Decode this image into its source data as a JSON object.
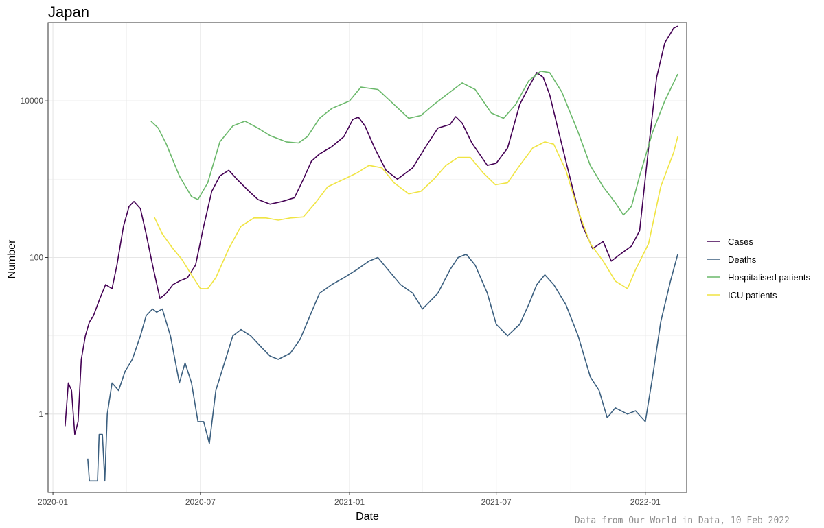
{
  "chart_data": {
    "type": "line",
    "title": "Japan",
    "xlabel": "Date",
    "ylabel": "Number",
    "caption": "Data from Our World in Data, 10 Feb 2022",
    "y_scale": "log10",
    "ylim": [
      0.1,
      100000
    ],
    "xlim": [
      "2019-12-26",
      "2022-02-21"
    ],
    "x_ticks": [
      {
        "date": "2020-01-01",
        "label": "2020-01"
      },
      {
        "date": "2020-07-01",
        "label": "2020-07"
      },
      {
        "date": "2021-01-01",
        "label": "2021-01"
      },
      {
        "date": "2021-07-01",
        "label": "2021-07"
      },
      {
        "date": "2022-01-01",
        "label": "2022-01"
      }
    ],
    "y_ticks": [
      {
        "value": 1,
        "label": "1"
      },
      {
        "value": 100,
        "label": "100"
      },
      {
        "value": 10000,
        "label": "10000"
      }
    ],
    "grid": true,
    "legend_position": "right",
    "series": [
      {
        "name": "Cases",
        "color": "#440154",
        "points": [
          [
            "2020-01-16",
            0.7
          ],
          [
            "2020-01-20",
            2.5
          ],
          [
            "2020-01-24",
            2.0
          ],
          [
            "2020-01-28",
            0.55
          ],
          [
            "2020-02-01",
            0.8
          ],
          [
            "2020-02-05",
            5
          ],
          [
            "2020-02-10",
            10
          ],
          [
            "2020-02-15",
            15
          ],
          [
            "2020-02-20",
            18
          ],
          [
            "2020-02-28",
            30
          ],
          [
            "2020-03-06",
            45
          ],
          [
            "2020-03-14",
            40
          ],
          [
            "2020-03-20",
            80
          ],
          [
            "2020-03-28",
            250
          ],
          [
            "2020-04-04",
            450
          ],
          [
            "2020-04-10",
            520
          ],
          [
            "2020-04-18",
            420
          ],
          [
            "2020-04-25",
            200
          ],
          [
            "2020-05-03",
            80
          ],
          [
            "2020-05-12",
            30
          ],
          [
            "2020-05-20",
            35
          ],
          [
            "2020-05-28",
            45
          ],
          [
            "2020-06-05",
            50
          ],
          [
            "2020-06-15",
            55
          ],
          [
            "2020-06-25",
            80
          ],
          [
            "2020-07-05",
            250
          ],
          [
            "2020-07-15",
            700
          ],
          [
            "2020-07-25",
            1100
          ],
          [
            "2020-08-05",
            1300
          ],
          [
            "2020-08-15",
            1000
          ],
          [
            "2020-08-30",
            700
          ],
          [
            "2020-09-10",
            550
          ],
          [
            "2020-09-25",
            480
          ],
          [
            "2020-10-10",
            520
          ],
          [
            "2020-10-25",
            580
          ],
          [
            "2020-11-05",
            1000
          ],
          [
            "2020-11-15",
            1700
          ],
          [
            "2020-11-25",
            2100
          ],
          [
            "2020-12-10",
            2600
          ],
          [
            "2020-12-25",
            3500
          ],
          [
            "2021-01-05",
            5800
          ],
          [
            "2021-01-12",
            6200
          ],
          [
            "2021-01-20",
            4800
          ],
          [
            "2021-02-01",
            2500
          ],
          [
            "2021-02-15",
            1300
          ],
          [
            "2021-03-01",
            1000
          ],
          [
            "2021-03-20",
            1400
          ],
          [
            "2021-04-05",
            2600
          ],
          [
            "2021-04-20",
            4500
          ],
          [
            "2021-05-05",
            5000
          ],
          [
            "2021-05-12",
            6300
          ],
          [
            "2021-05-20",
            5200
          ],
          [
            "2021-06-01",
            2900
          ],
          [
            "2021-06-20",
            1500
          ],
          [
            "2021-07-01",
            1600
          ],
          [
            "2021-07-15",
            2500
          ],
          [
            "2021-07-30",
            9000
          ],
          [
            "2021-08-10",
            15000
          ],
          [
            "2021-08-20",
            23000
          ],
          [
            "2021-08-28",
            20000
          ],
          [
            "2021-09-05",
            12000
          ],
          [
            "2021-09-15",
            4500
          ],
          [
            "2021-09-25",
            1700
          ],
          [
            "2021-10-05",
            650
          ],
          [
            "2021-10-15",
            260
          ],
          [
            "2021-10-28",
            130
          ],
          [
            "2021-11-10",
            160
          ],
          [
            "2021-11-20",
            90
          ],
          [
            "2021-12-01",
            110
          ],
          [
            "2021-12-15",
            140
          ],
          [
            "2021-12-25",
            220
          ],
          [
            "2022-01-05",
            2500
          ],
          [
            "2022-01-15",
            20000
          ],
          [
            "2022-01-25",
            55000
          ],
          [
            "2022-02-05",
            85000
          ],
          [
            "2022-02-10",
            90000
          ]
        ]
      },
      {
        "name": "Deaths",
        "color": "#3b5f7f",
        "points": [
          [
            "2020-02-13",
            0.27
          ],
          [
            "2020-02-15",
            0.14
          ],
          [
            "2020-02-25",
            0.14
          ],
          [
            "2020-02-27",
            0.55
          ],
          [
            "2020-03-02",
            0.55
          ],
          [
            "2020-03-05",
            0.14
          ],
          [
            "2020-03-08",
            1.0
          ],
          [
            "2020-03-14",
            2.5
          ],
          [
            "2020-03-22",
            2.0
          ],
          [
            "2020-03-30",
            3.5
          ],
          [
            "2020-04-08",
            5
          ],
          [
            "2020-04-18",
            10
          ],
          [
            "2020-04-25",
            18
          ],
          [
            "2020-05-03",
            22
          ],
          [
            "2020-05-08",
            20
          ],
          [
            "2020-05-15",
            22
          ],
          [
            "2020-05-25",
            10
          ],
          [
            "2020-06-05",
            2.5
          ],
          [
            "2020-06-12",
            4.5
          ],
          [
            "2020-06-20",
            2.5
          ],
          [
            "2020-06-28",
            0.8
          ],
          [
            "2020-07-05",
            0.8
          ],
          [
            "2020-07-12",
            0.42
          ],
          [
            "2020-07-20",
            2
          ],
          [
            "2020-08-01",
            5
          ],
          [
            "2020-08-10",
            10
          ],
          [
            "2020-08-20",
            12
          ],
          [
            "2020-09-01",
            10
          ],
          [
            "2020-09-15",
            7
          ],
          [
            "2020-09-25",
            5.5
          ],
          [
            "2020-10-05",
            5
          ],
          [
            "2020-10-20",
            6
          ],
          [
            "2020-11-01",
            9
          ],
          [
            "2020-11-15",
            20
          ],
          [
            "2020-11-25",
            35
          ],
          [
            "2020-12-10",
            45
          ],
          [
            "2020-12-25",
            55
          ],
          [
            "2021-01-10",
            70
          ],
          [
            "2021-01-25",
            90
          ],
          [
            "2021-02-05",
            100
          ],
          [
            "2021-02-20",
            65
          ],
          [
            "2021-03-05",
            45
          ],
          [
            "2021-03-20",
            35
          ],
          [
            "2021-04-01",
            22
          ],
          [
            "2021-04-20",
            35
          ],
          [
            "2021-05-05",
            70
          ],
          [
            "2021-05-15",
            100
          ],
          [
            "2021-05-25",
            110
          ],
          [
            "2021-06-05",
            80
          ],
          [
            "2021-06-20",
            35
          ],
          [
            "2021-07-01",
            14
          ],
          [
            "2021-07-15",
            10
          ],
          [
            "2021-07-30",
            14
          ],
          [
            "2021-08-10",
            25
          ],
          [
            "2021-08-20",
            45
          ],
          [
            "2021-08-30",
            60
          ],
          [
            "2021-09-10",
            45
          ],
          [
            "2021-09-25",
            25
          ],
          [
            "2021-10-10",
            10
          ],
          [
            "2021-10-25",
            3
          ],
          [
            "2021-11-05",
            2
          ],
          [
            "2021-11-15",
            0.9
          ],
          [
            "2021-11-25",
            1.2
          ],
          [
            "2021-12-10",
            1.0
          ],
          [
            "2021-12-20",
            1.1
          ],
          [
            "2022-01-01",
            0.8
          ],
          [
            "2022-01-10",
            3
          ],
          [
            "2022-01-20",
            15
          ],
          [
            "2022-02-01",
            50
          ],
          [
            "2022-02-10",
            110
          ]
        ]
      },
      {
        "name": "Hospitalised patients",
        "color": "#6ab86a",
        "points": [
          [
            "2020-05-01",
            5500
          ],
          [
            "2020-05-10",
            4500
          ],
          [
            "2020-05-20",
            2800
          ],
          [
            "2020-06-05",
            1100
          ],
          [
            "2020-06-20",
            600
          ],
          [
            "2020-06-28",
            550
          ],
          [
            "2020-07-10",
            900
          ],
          [
            "2020-07-25",
            3000
          ],
          [
            "2020-08-10",
            4800
          ],
          [
            "2020-08-25",
            5500
          ],
          [
            "2020-09-10",
            4500
          ],
          [
            "2020-09-25",
            3600
          ],
          [
            "2020-10-15",
            3000
          ],
          [
            "2020-10-30",
            2900
          ],
          [
            "2020-11-10",
            3500
          ],
          [
            "2020-11-25",
            6000
          ],
          [
            "2020-12-10",
            8000
          ],
          [
            "2021-01-01",
            10000
          ],
          [
            "2021-01-15",
            15000
          ],
          [
            "2021-02-05",
            14000
          ],
          [
            "2021-02-25",
            9000
          ],
          [
            "2021-03-15",
            6000
          ],
          [
            "2021-03-30",
            6500
          ],
          [
            "2021-04-15",
            9000
          ],
          [
            "2021-05-05",
            13000
          ],
          [
            "2021-05-20",
            17000
          ],
          [
            "2021-06-05",
            14000
          ],
          [
            "2021-06-25",
            7000
          ],
          [
            "2021-07-10",
            6000
          ],
          [
            "2021-07-25",
            9000
          ],
          [
            "2021-08-10",
            18000
          ],
          [
            "2021-08-25",
            24000
          ],
          [
            "2021-09-05",
            23000
          ],
          [
            "2021-09-20",
            13000
          ],
          [
            "2021-10-10",
            4000
          ],
          [
            "2021-10-25",
            1500
          ],
          [
            "2021-11-10",
            800
          ],
          [
            "2021-11-25",
            500
          ],
          [
            "2021-12-05",
            350
          ],
          [
            "2021-12-15",
            450
          ],
          [
            "2021-12-25",
            1100
          ],
          [
            "2022-01-10",
            4000
          ],
          [
            "2022-01-25",
            10000
          ],
          [
            "2022-02-10",
            22000
          ]
        ]
      },
      {
        "name": "ICU patients",
        "color": "#f0e442",
        "points": [
          [
            "2020-05-05",
            330
          ],
          [
            "2020-05-15",
            200
          ],
          [
            "2020-05-28",
            130
          ],
          [
            "2020-06-08",
            95
          ],
          [
            "2020-06-20",
            60
          ],
          [
            "2020-07-01",
            40
          ],
          [
            "2020-07-10",
            40
          ],
          [
            "2020-07-20",
            55
          ],
          [
            "2020-08-05",
            130
          ],
          [
            "2020-08-20",
            250
          ],
          [
            "2020-09-05",
            320
          ],
          [
            "2020-09-20",
            320
          ],
          [
            "2020-10-05",
            300
          ],
          [
            "2020-10-20",
            320
          ],
          [
            "2020-11-05",
            330
          ],
          [
            "2020-11-20",
            500
          ],
          [
            "2020-12-05",
            800
          ],
          [
            "2020-12-25",
            1000
          ],
          [
            "2021-01-10",
            1200
          ],
          [
            "2021-01-25",
            1500
          ],
          [
            "2021-02-10",
            1400
          ],
          [
            "2021-02-25",
            900
          ],
          [
            "2021-03-15",
            650
          ],
          [
            "2021-03-30",
            700
          ],
          [
            "2021-04-15",
            1000
          ],
          [
            "2021-04-30",
            1500
          ],
          [
            "2021-05-15",
            1900
          ],
          [
            "2021-05-30",
            1900
          ],
          [
            "2021-06-15",
            1200
          ],
          [
            "2021-06-30",
            850
          ],
          [
            "2021-07-15",
            900
          ],
          [
            "2021-07-30",
            1500
          ],
          [
            "2021-08-15",
            2500
          ],
          [
            "2021-08-30",
            3000
          ],
          [
            "2021-09-10",
            2800
          ],
          [
            "2021-09-25",
            1300
          ],
          [
            "2021-10-10",
            400
          ],
          [
            "2021-10-25",
            150
          ],
          [
            "2021-11-10",
            90
          ],
          [
            "2021-11-25",
            50
          ],
          [
            "2021-12-10",
            40
          ],
          [
            "2021-12-20",
            70
          ],
          [
            "2022-01-05",
            150
          ],
          [
            "2022-01-20",
            800
          ],
          [
            "2022-02-05",
            2200
          ],
          [
            "2022-02-10",
            3500
          ]
        ]
      }
    ]
  }
}
